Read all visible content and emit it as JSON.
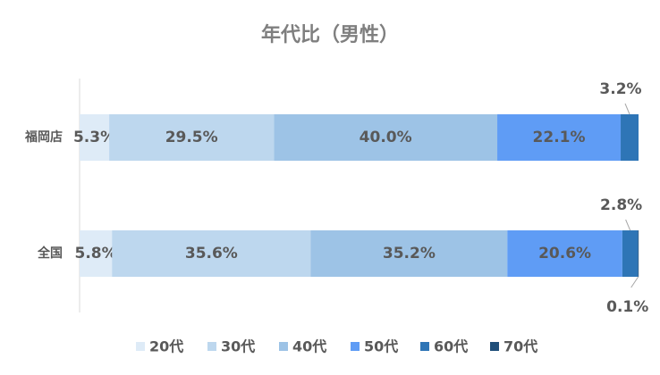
{
  "chart_data": {
    "type": "stacked-bar-100",
    "title": "年代比（男性）",
    "categories": [
      "福岡店",
      "全国"
    ],
    "series": [
      {
        "name": "20代",
        "color": "#deebf7",
        "values": [
          5.3,
          5.8
        ],
        "value_labels": [
          "5.3%",
          "5.8%"
        ]
      },
      {
        "name": "30代",
        "color": "#bdd7ee",
        "values": [
          29.5,
          35.6
        ],
        "value_labels": [
          "29.5%",
          "35.6%"
        ]
      },
      {
        "name": "40代",
        "color": "#9dc3e6",
        "values": [
          40.0,
          35.2
        ],
        "value_labels": [
          "40.0%",
          "35.2%"
        ]
      },
      {
        "name": "50代",
        "color": "#5f9cf5",
        "values": [
          22.1,
          20.6
        ],
        "value_labels": [
          "22.1%",
          "20.6%"
        ]
      },
      {
        "name": "60代",
        "color": "#2e75b6",
        "values": [
          3.2,
          2.8
        ],
        "value_labels": [
          "3.2%",
          "2.8%"
        ]
      },
      {
        "name": "70代",
        "color": "#1f4e79",
        "values": [
          null,
          0.1
        ],
        "value_labels": [
          null,
          "0.1%"
        ]
      }
    ],
    "legend": "bottom"
  }
}
